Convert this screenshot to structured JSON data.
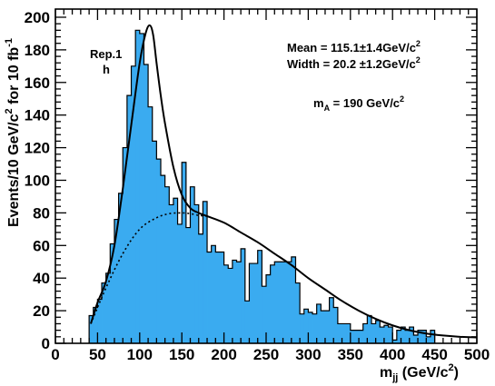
{
  "chart_data": {
    "type": "histogram",
    "xlabel": {
      "main": "m",
      "sub": "jj",
      "unit": " (GeV/c",
      "sup": "2",
      "close": ")"
    },
    "ylabel": {
      "pre": "Events/10 GeV/c",
      "sup1": "2",
      "mid": " for 10 fb",
      "sup2": "-1"
    },
    "xlim": [
      0,
      500
    ],
    "ylim": [
      0,
      205
    ],
    "x_ticks": [
      0,
      50,
      100,
      150,
      200,
      250,
      300,
      350,
      400,
      450,
      500
    ],
    "x_tick_labels": [
      "0",
      "50",
      "100",
      "150",
      "200",
      "250",
      "300",
      "350",
      "400",
      "450",
      "500"
    ],
    "y_ticks": [
      0,
      20,
      40,
      60,
      80,
      100,
      120,
      140,
      160,
      180,
      200
    ],
    "y_tick_labels": [
      "0",
      "20",
      "40",
      "60",
      "80",
      "100",
      "120",
      "140",
      "160",
      "180",
      "200"
    ],
    "bin_width": 5,
    "bin_edges_start": 40,
    "bin_values": [
      17,
      22,
      27,
      37,
      43,
      61,
      76,
      92,
      120,
      152,
      170,
      192,
      190,
      171,
      145,
      124,
      113,
      103,
      96,
      85,
      89,
      73,
      111,
      71,
      96,
      85,
      67,
      87,
      56,
      60,
      56,
      56,
      48,
      46,
      51,
      50,
      58,
      26,
      49,
      49,
      57,
      35,
      42,
      48,
      50,
      50,
      50,
      50,
      53,
      37,
      18,
      21,
      19,
      18,
      24,
      20,
      20,
      28,
      22,
      12,
      12,
      12,
      8,
      8,
      8,
      12,
      17,
      12,
      14,
      10,
      11,
      10,
      2,
      8,
      10,
      8,
      10,
      5,
      8,
      8,
      4,
      8
    ],
    "fit_total": {
      "x": [
        42,
        50,
        60,
        70,
        80,
        90,
        100,
        107,
        112,
        116,
        120,
        125,
        130,
        140,
        150,
        160,
        170,
        180,
        200,
        220,
        240,
        260,
        280,
        300,
        320,
        340,
        360,
        380,
        400,
        420,
        440,
        460,
        480,
        500
      ],
      "y": [
        12,
        25,
        38,
        60,
        95,
        134,
        172,
        190,
        195,
        189,
        172,
        152,
        135,
        108,
        91,
        83,
        80,
        78,
        74,
        68,
        62,
        55,
        48,
        40,
        33,
        26,
        20,
        15,
        11,
        8,
        6,
        4.8,
        4,
        3.6
      ]
    },
    "fit_background": {
      "x": [
        42,
        60,
        80,
        100,
        120,
        135,
        150,
        160,
        170,
        180
      ],
      "y": [
        12,
        34,
        55,
        70,
        77,
        79.5,
        80,
        79.5,
        78.5,
        78
      ]
    },
    "annotations": {
      "rep_line1": "Rep.1",
      "rep_line2": "h",
      "mean": "Mean = 115.1±1.4GeV/c",
      "mean_sup": "2",
      "width": "Width = 20.2 ±1.2GeV/c",
      "width_sup": "2",
      "ma_main": "m",
      "ma_sub": "A",
      "ma_rest": " = 190 GeV/c",
      "ma_sup": "2"
    },
    "colors": {
      "fill": "#3aabf0",
      "line": "#000000",
      "background": "#ffffff"
    }
  }
}
